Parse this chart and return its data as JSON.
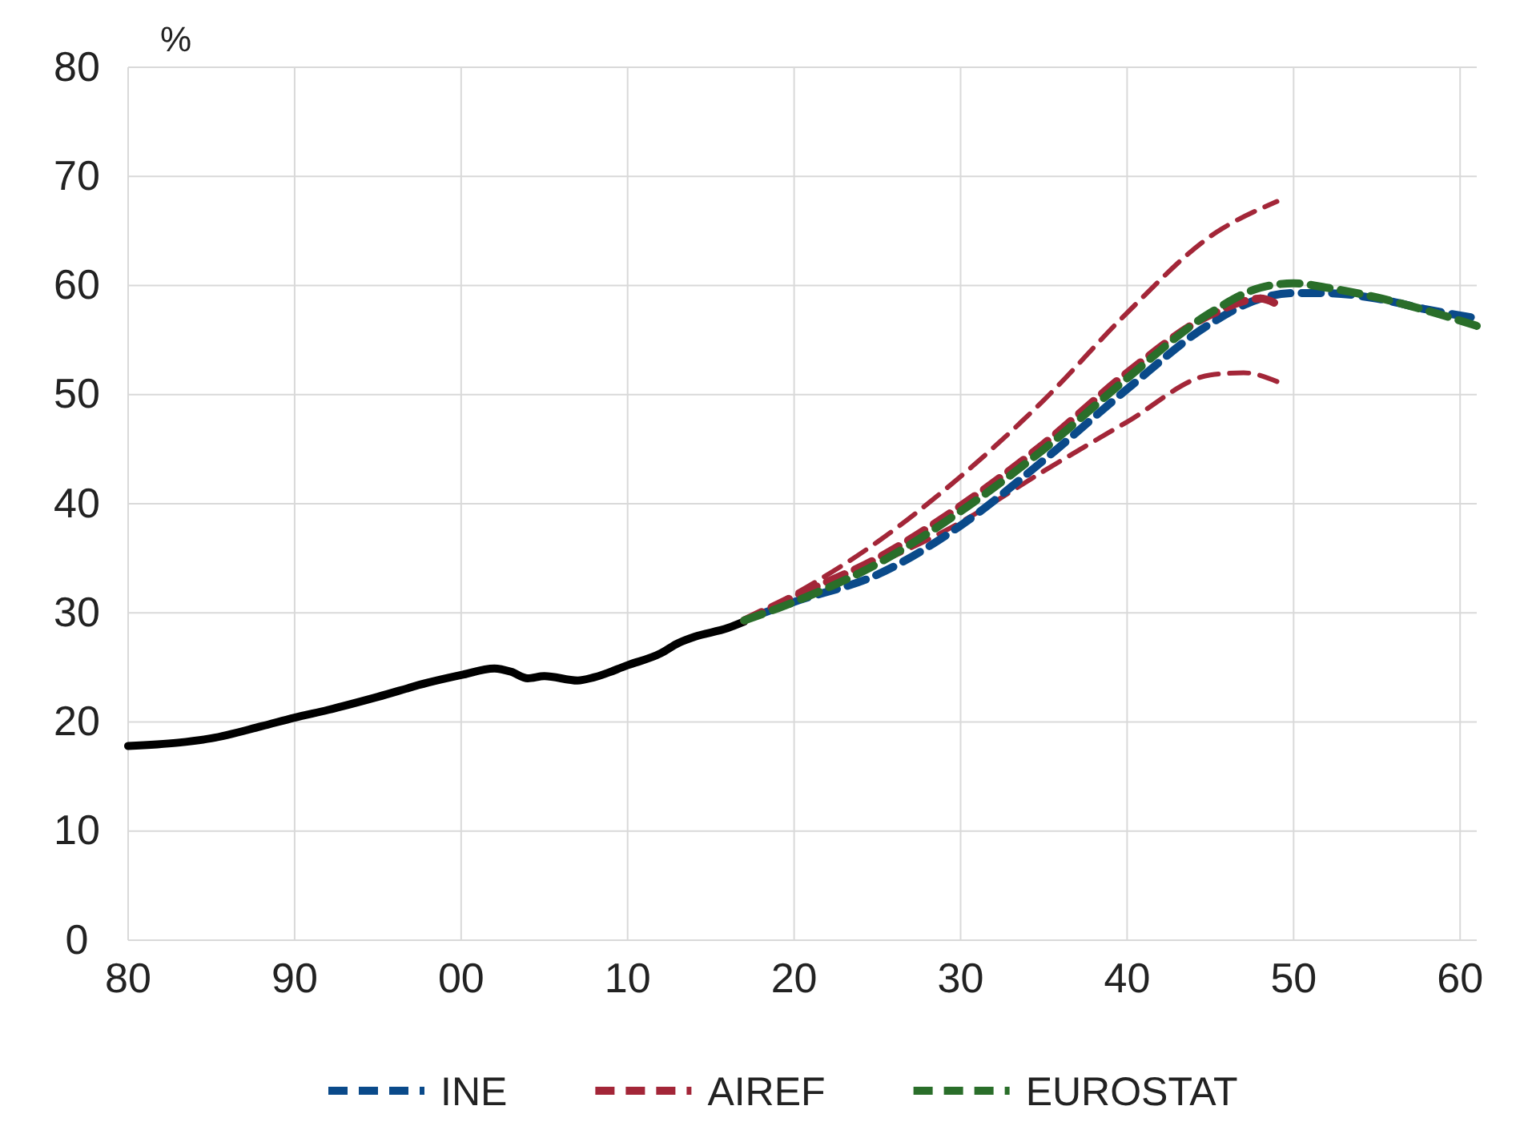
{
  "chart_data": {
    "type": "line",
    "ylabel": "%",
    "xlim": [
      1980,
      2061
    ],
    "ylim": [
      0,
      80
    ],
    "xticks": [
      {
        "value": 1980,
        "label": "80"
      },
      {
        "value": 1990,
        "label": "90"
      },
      {
        "value": 2000,
        "label": "00"
      },
      {
        "value": 2010,
        "label": "10"
      },
      {
        "value": 2020,
        "label": "20"
      },
      {
        "value": 2030,
        "label": "30"
      },
      {
        "value": 2040,
        "label": "40"
      },
      {
        "value": 2050,
        "label": "50"
      },
      {
        "value": 2060,
        "label": "60"
      }
    ],
    "yticks": [
      0,
      10,
      20,
      30,
      40,
      50,
      60,
      70,
      80
    ],
    "grid": true,
    "legend": "bottom",
    "marker": "none",
    "series": [
      {
        "color": "#000000",
        "line_style": "solid",
        "x": [
          1980,
          1983,
          1985,
          1988,
          1990,
          1992,
          1995,
          1998,
          2000,
          2002,
          2003,
          2004,
          2005,
          2007,
          2008,
          2010,
          2012,
          2013,
          2014,
          2016,
          2017
        ],
        "values": [
          17.8,
          18.1,
          18.5,
          19.6,
          20.4,
          21.1,
          22.3,
          23.6,
          24.3,
          24.9,
          24.6,
          24.0,
          24.2,
          23.8,
          24.1,
          25.2,
          26.3,
          27.2,
          27.8,
          28.6,
          29.2
        ]
      },
      {
        "color": "#a32638",
        "line_style": "dashed",
        "x": [
          2017,
          2020,
          2025,
          2030,
          2035,
          2040,
          2045,
          2049
        ],
        "values": [
          29.3,
          31.7,
          36.5,
          42.5,
          49.5,
          57.5,
          64.5,
          67.7
        ]
      },
      {
        "color": "#a32638",
        "line_style": "dashed",
        "x": [
          2017,
          2020,
          2025,
          2030,
          2035,
          2040,
          2045,
          2047,
          2049
        ],
        "values": [
          29.3,
          31.3,
          34.5,
          38.3,
          43,
          47.5,
          51.8,
          52,
          51.2
        ]
      },
      {
        "name": "INE",
        "color": "#0a4a8a",
        "line_style": "dashed",
        "x": [
          2018,
          2020,
          2025,
          2030,
          2035,
          2040,
          2045,
          2048,
          2050,
          2052,
          2055,
          2058,
          2061
        ],
        "values": [
          29.9,
          31,
          33.5,
          38,
          44,
          50.5,
          56.5,
          58.8,
          59.3,
          59.3,
          58.8,
          57.8,
          57.0
        ]
      },
      {
        "name": "AIREF",
        "color": "#a32638",
        "line_style": "dashed",
        "x": [
          2017,
          2020,
          2025,
          2030,
          2035,
          2040,
          2045,
          2048,
          2049
        ],
        "values": [
          29.3,
          31.5,
          35,
          39.8,
          45.5,
          52,
          57.3,
          58.8,
          58.3
        ]
      },
      {
        "name": "EUROSTAT",
        "color": "#2a6e2a",
        "line_style": "dashed",
        "x": [
          2017,
          2020,
          2025,
          2030,
          2035,
          2040,
          2045,
          2048,
          2050,
          2052,
          2055,
          2058,
          2061
        ],
        "values": [
          29.3,
          31,
          34.5,
          39.3,
          45,
          51.5,
          57.5,
          59.8,
          60.2,
          59.8,
          58.9,
          57.7,
          56.3
        ]
      }
    ]
  }
}
